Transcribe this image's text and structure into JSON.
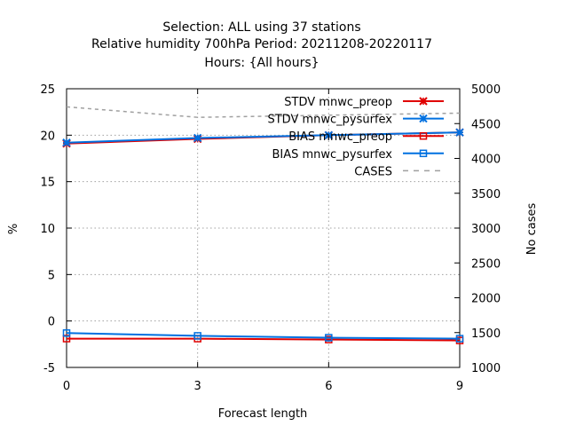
{
  "chart_data": {
    "type": "line",
    "title_lines": [
      "Selection: ALL using    37 stations",
      "Relative humidity 700hPa   Period: 20211208-20220117",
      "Hours: {All hours}"
    ],
    "xlabel": "Forecast length",
    "ylabel": "%",
    "y2label": "No cases",
    "xlim": [
      0,
      9
    ],
    "ylim": [
      -5,
      25
    ],
    "y2lim": [
      1000,
      5000
    ],
    "xticks": [
      "0",
      "3",
      "6",
      "9"
    ],
    "xtick_values": [
      0,
      3,
      6,
      9
    ],
    "yticks": [
      "-5",
      "0",
      "5",
      "10",
      "15",
      "20",
      "25"
    ],
    "ytick_values": [
      -5,
      0,
      5,
      10,
      15,
      20,
      25
    ],
    "y2ticks": [
      "1000",
      "1500",
      "2000",
      "2500",
      "3000",
      "3500",
      "4000",
      "4500",
      "5000"
    ],
    "y2tick_values": [
      1000,
      1500,
      2000,
      2500,
      3000,
      3500,
      4000,
      4500,
      5000
    ],
    "grid": true,
    "legend_position": "top-right",
    "x": [
      0,
      3,
      6,
      9
    ],
    "series": [
      {
        "name": "STDV mnwc_preop",
        "axis": "y",
        "values": [
          19.1,
          19.6,
          20.0,
          20.3
        ],
        "color": "#e00000",
        "marker": "x"
      },
      {
        "name": "STDV mnwc_pysurfex",
        "axis": "y",
        "values": [
          19.2,
          19.7,
          20.0,
          20.3
        ],
        "color": "#0070e0",
        "marker": "x"
      },
      {
        "name": "BIAS mnwc_preop",
        "axis": "y",
        "values": [
          -1.9,
          -1.9,
          -2.0,
          -2.1
        ],
        "color": "#e00000",
        "marker": "square"
      },
      {
        "name": "BIAS mnwc_pysurfex",
        "axis": "y",
        "values": [
          -1.3,
          -1.6,
          -1.8,
          -1.9
        ],
        "color": "#0070e0",
        "marker": "square"
      },
      {
        "name": "CASES",
        "axis": "y2",
        "values": [
          4740,
          4590,
          4620,
          4650
        ],
        "color": "#a0a0a0",
        "marker": "none"
      }
    ]
  }
}
